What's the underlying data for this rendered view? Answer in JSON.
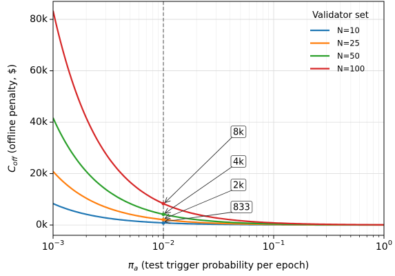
{
  "chart_data": {
    "type": "line",
    "x_scale": "log",
    "xlim": [
      0.001,
      1
    ],
    "ylim": [
      -4000,
      87000
    ],
    "x_ticks": [
      0.001,
      0.01,
      0.1,
      1
    ],
    "x_tick_labels": [
      {
        "base": "10",
        "exp": "−3"
      },
      {
        "base": "10",
        "exp": "−2"
      },
      {
        "base": "10",
        "exp": "−1"
      },
      {
        "base": "10",
        "exp": "0"
      }
    ],
    "y_ticks": [
      0,
      20000,
      40000,
      60000,
      80000
    ],
    "y_tick_labels": [
      "0k",
      "20k",
      "40k",
      "60k",
      "80k"
    ],
    "grid": true,
    "xlabel": {
      "symbol": "π",
      "sub": "a",
      "text": " (test trigger probability per epoch)"
    },
    "ylabel": {
      "symbol": "C",
      "sub": "off",
      "text": " (offline penalty, $)"
    },
    "reference_line_x": 0.01,
    "legend": {
      "title": "Validator set",
      "placement": "top-right"
    },
    "series": [
      {
        "name": "N=10",
        "color": "#1f77b4",
        "value_at_ref": 833
      },
      {
        "name": "N=25",
        "color": "#ff7f0e",
        "value_at_ref": 2083
      },
      {
        "name": "N=50",
        "color": "#2ca02c",
        "value_at_ref": 4167
      },
      {
        "name": "N=100",
        "color": "#d62728",
        "value_at_ref": 8333
      }
    ],
    "annotations": [
      {
        "label": "8k",
        "series": "N=100"
      },
      {
        "label": "4k",
        "series": "N=50"
      },
      {
        "label": "2k",
        "series": "N=25"
      },
      {
        "label": "833",
        "series": "N=10"
      }
    ]
  }
}
